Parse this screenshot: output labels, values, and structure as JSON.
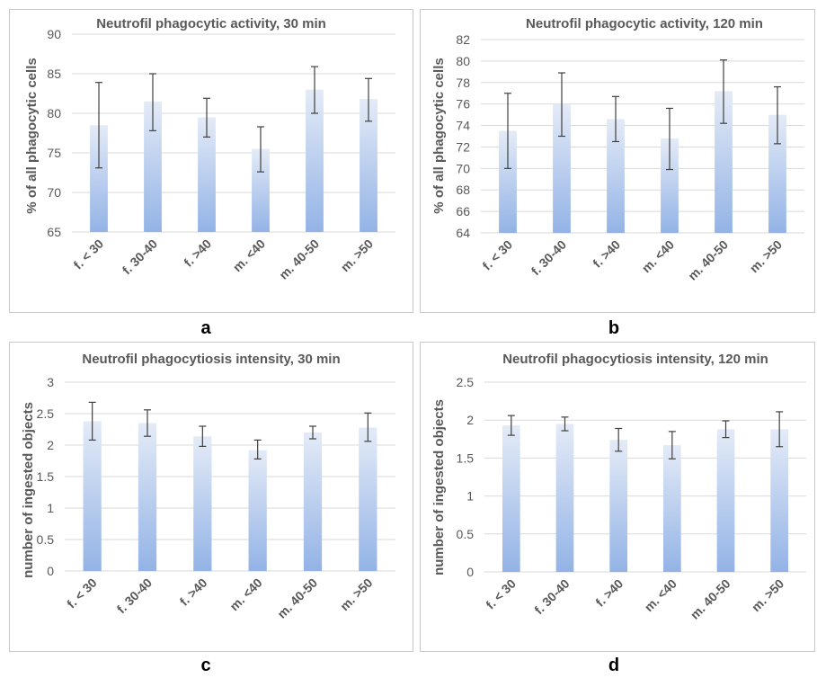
{
  "panel_letters": [
    "a",
    "b",
    "c",
    "d"
  ],
  "chart_data": [
    {
      "type": "bar",
      "title": "Neutrofil phagocytic activity, 30 min",
      "xlabel": "",
      "ylabel": "% of all phagocytic cells",
      "categories": [
        "f. < 30",
        "f. 30-40",
        "f. >40",
        "m. <40",
        "m. 40-50",
        "m. >50"
      ],
      "values": [
        78.5,
        81.5,
        79.5,
        75.5,
        83.0,
        81.8
      ],
      "error_low": [
        73.1,
        77.8,
        77.0,
        72.6,
        80.0,
        79.0
      ],
      "error_high": [
        83.9,
        85.0,
        81.9,
        78.3,
        85.9,
        84.4
      ],
      "ylim": [
        65,
        90
      ],
      "yticks": [
        65,
        70,
        75,
        80,
        85,
        90
      ],
      "ytick_labels": [
        "65",
        "70",
        "75",
        "80",
        "85",
        "90"
      ],
      "grid": true
    },
    {
      "type": "bar",
      "title": "Neutrofil phagocytic activity, 120 min",
      "xlabel": "",
      "ylabel": "% of all phagocytic cells",
      "categories": [
        "f. < 30",
        "f. 30-40",
        "f. >40",
        "m. <40",
        "m. 40-50",
        "m. >50"
      ],
      "values": [
        73.5,
        76.0,
        74.6,
        72.8,
        77.2,
        75.0
      ],
      "error_low": [
        70.0,
        73.0,
        72.5,
        69.9,
        74.2,
        72.3
      ],
      "error_high": [
        77.0,
        78.9,
        76.7,
        75.6,
        80.1,
        77.6
      ],
      "ylim": [
        64,
        82
      ],
      "yticks": [
        64,
        66,
        68,
        70,
        72,
        74,
        76,
        78,
        80,
        82
      ],
      "ytick_labels": [
        "64",
        "66",
        "68",
        "70",
        "72",
        "74",
        "76",
        "78",
        "80",
        "82"
      ],
      "grid": true
    },
    {
      "type": "bar",
      "title": "Neutrofil phagocytiosis intensity, 30 min",
      "xlabel": "",
      "ylabel": "number of ingested objects",
      "categories": [
        "f. < 30",
        "f. 30-40",
        "f. >40",
        "m. <40",
        "m. 40-50",
        "m. >50"
      ],
      "values": [
        2.38,
        2.35,
        2.14,
        1.92,
        2.2,
        2.28
      ],
      "error_low": [
        2.08,
        2.14,
        1.98,
        1.78,
        2.1,
        2.06
      ],
      "error_high": [
        2.68,
        2.56,
        2.3,
        2.08,
        2.3,
        2.51
      ],
      "ylim": [
        0,
        3
      ],
      "yticks": [
        0,
        0.5,
        1,
        1.5,
        2,
        2.5,
        3
      ],
      "ytick_labels": [
        "0",
        "0.5",
        "1",
        "1.5",
        "2",
        "2.5",
        "3"
      ],
      "grid": true
    },
    {
      "type": "bar",
      "title": "Neutrofil phagocytiosis intensity, 120 min",
      "xlabel": "",
      "ylabel": "number of ingested objects",
      "categories": [
        "f. < 30",
        "f. 30-40",
        "f. >40",
        "m. <40",
        "m. 40-50",
        "m. >50"
      ],
      "values": [
        1.93,
        1.95,
        1.74,
        1.67,
        1.88,
        1.88
      ],
      "error_low": [
        1.8,
        1.86,
        1.59,
        1.49,
        1.77,
        1.65
      ],
      "error_high": [
        2.06,
        2.04,
        1.89,
        1.85,
        1.99,
        2.11
      ],
      "ylim": [
        0,
        2.5
      ],
      "yticks": [
        0,
        0.5,
        1,
        1.5,
        2,
        2.5
      ],
      "ytick_labels": [
        "0",
        "0.5",
        "1",
        "1.5",
        "2",
        "2.5"
      ],
      "grid": true
    }
  ],
  "colors": {
    "bar_top": "#e4ebf7",
    "bar_bottom": "#93b3e6",
    "text": "#595959",
    "grid": "#d9d9d9",
    "error_bar": "#404040"
  }
}
